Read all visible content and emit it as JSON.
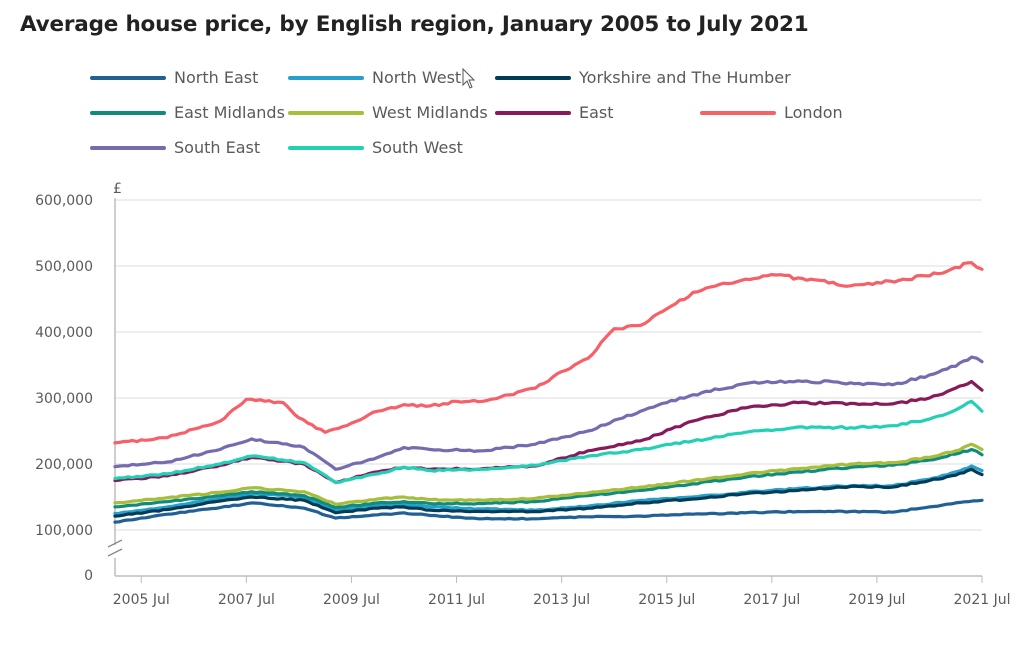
{
  "chart_data": {
    "type": "line",
    "title": "Average house price, by English region, January 2005 to July 2021",
    "ylabel": "£",
    "xlabel": "",
    "ylim": [
      0,
      600000
    ],
    "y_ticks": [
      0,
      100000,
      200000,
      300000,
      400000,
      500000,
      600000
    ],
    "y_tick_labels": [
      "0",
      "100,000",
      "200,000",
      "300,000",
      "400,000",
      "500,000",
      "600,000"
    ],
    "x_ticks": [
      2005.5,
      2007.5,
      2009.5,
      2011.5,
      2013.5,
      2015.5,
      2017.5,
      2019.5,
      2021.5
    ],
    "x_tick_labels": [
      "2005 Jul",
      "2007 Jul",
      "2009 Jul",
      "2011 Jul",
      "2013 Jul",
      "2015 Jul",
      "2017 Jul",
      "2019 Jul",
      "2021 Jul"
    ],
    "x_range": [
      2005.0,
      2021.5
    ],
    "axis_break": true,
    "grid": true,
    "legend_position": "top",
    "series": [
      {
        "name": "North East",
        "color": "#206095",
        "x": [
          2005.0,
          2006.0,
          2007.0,
          2007.6,
          2008.6,
          2009.2,
          2010.0,
          2010.5,
          2011.0,
          2012.0,
          2013.0,
          2014.0,
          2015.0,
          2016.0,
          2017.0,
          2018.0,
          2019.0,
          2019.8,
          2020.5,
          2021.0,
          2021.5
        ],
        "values": [
          112000,
          124000,
          134000,
          141000,
          133000,
          118000,
          123000,
          126000,
          122000,
          117000,
          117000,
          120000,
          121000,
          124000,
          126000,
          128000,
          128000,
          127000,
          135000,
          141000,
          145000
        ]
      },
      {
        "name": "North West",
        "color": "#27a0cc",
        "x": [
          2005.0,
          2006.0,
          2007.0,
          2007.6,
          2008.6,
          2009.2,
          2010.0,
          2010.5,
          2011.0,
          2012.0,
          2013.0,
          2014.0,
          2015.0,
          2016.0,
          2017.0,
          2018.0,
          2019.0,
          2019.8,
          2020.5,
          2021.0,
          2021.3,
          2021.5
        ],
        "values": [
          125000,
          135000,
          148000,
          155000,
          150000,
          130000,
          137000,
          139000,
          135000,
          132000,
          130000,
          136000,
          145000,
          150000,
          157000,
          163000,
          167000,
          167000,
          177000,
          188000,
          197000,
          190000
        ]
      },
      {
        "name": "Yorkshire and The Humber",
        "color": "#003c57",
        "x": [
          2005.0,
          2006.0,
          2007.0,
          2007.6,
          2008.6,
          2009.2,
          2010.0,
          2010.5,
          2011.0,
          2012.0,
          2013.0,
          2014.0,
          2015.0,
          2016.0,
          2017.0,
          2018.0,
          2019.0,
          2019.8,
          2020.5,
          2021.0,
          2021.3,
          2021.5
        ],
        "values": [
          121000,
          131000,
          144000,
          150000,
          145000,
          126000,
          133000,
          135000,
          130000,
          128000,
          128000,
          133000,
          141000,
          147000,
          155000,
          160000,
          166000,
          165000,
          175000,
          183000,
          192000,
          184000
        ]
      },
      {
        "name": "East Midlands",
        "color": "#118c7b",
        "x": [
          2005.0,
          2006.0,
          2007.0,
          2007.6,
          2008.6,
          2009.2,
          2010.0,
          2010.5,
          2011.0,
          2012.0,
          2013.0,
          2014.0,
          2015.0,
          2016.0,
          2017.0,
          2018.0,
          2019.0,
          2019.8,
          2020.5,
          2021.0,
          2021.3,
          2021.5
        ],
        "values": [
          135000,
          143000,
          152000,
          158000,
          152000,
          134000,
          141000,
          143000,
          140000,
          140000,
          143000,
          152000,
          160000,
          170000,
          180000,
          188000,
          195000,
          198000,
          206000,
          215000,
          222000,
          214000
        ]
      },
      {
        "name": "West Midlands",
        "color": "#a8bd3a",
        "x": [
          2005.0,
          2006.0,
          2007.0,
          2007.6,
          2008.6,
          2009.2,
          2010.0,
          2010.5,
          2011.0,
          2012.0,
          2013.0,
          2014.0,
          2015.0,
          2016.0,
          2017.0,
          2018.0,
          2019.0,
          2019.8,
          2020.5,
          2021.0,
          2021.3,
          2021.5
        ],
        "values": [
          141000,
          149000,
          157000,
          164000,
          158000,
          139000,
          147000,
          150000,
          146000,
          145000,
          148000,
          156000,
          165000,
          175000,
          185000,
          193000,
          200000,
          202000,
          210000,
          220000,
          230000,
          222000
        ]
      },
      {
        "name": "East",
        "color": "#871a5b",
        "x": [
          2005.0,
          2006.0,
          2007.0,
          2007.6,
          2008.6,
          2009.2,
          2010.0,
          2010.5,
          2011.0,
          2012.0,
          2013.0,
          2014.0,
          2015.0,
          2016.0,
          2017.0,
          2018.0,
          2019.0,
          2019.8,
          2020.5,
          2021.0,
          2021.3,
          2021.5
        ],
        "values": [
          175000,
          182000,
          198000,
          210000,
          200000,
          172000,
          188000,
          195000,
          192000,
          193000,
          197000,
          220000,
          235000,
          265000,
          285000,
          293000,
          292000,
          291000,
          300000,
          315000,
          325000,
          312000
        ]
      },
      {
        "name": "London",
        "color": "#f66068",
        "x": [
          2005.0,
          2006.0,
          2007.0,
          2007.5,
          2008.2,
          2008.5,
          2009.0,
          2009.5,
          2010.0,
          2010.5,
          2011.0,
          2011.5,
          2012.0,
          2013.0,
          2013.5,
          2014.0,
          2014.5,
          2015.0,
          2015.5,
          2016.0,
          2016.5,
          2017.0,
          2017.5,
          2018.0,
          2018.5,
          2019.0,
          2019.5,
          2020.0,
          2020.5,
          2021.0,
          2021.3,
          2021.5
        ],
        "values": [
          232000,
          240000,
          265000,
          298000,
          293000,
          270000,
          248000,
          262000,
          280000,
          290000,
          288000,
          295000,
          295000,
          315000,
          340000,
          360000,
          405000,
          410000,
          435000,
          460000,
          472000,
          480000,
          487000,
          482000,
          478000,
          470000,
          475000,
          480000,
          485000,
          498000,
          505000,
          495000
        ]
      },
      {
        "name": "South East",
        "color": "#746cb1",
        "x": [
          2005.0,
          2006.0,
          2007.0,
          2007.6,
          2008.6,
          2009.2,
          2010.0,
          2010.5,
          2011.0,
          2012.0,
          2013.0,
          2014.0,
          2015.0,
          2016.0,
          2017.0,
          2018.0,
          2019.0,
          2019.8,
          2020.5,
          2021.0,
          2021.3,
          2021.5
        ],
        "values": [
          196000,
          203000,
          222000,
          238000,
          225000,
          192000,
          210000,
          225000,
          222000,
          220000,
          230000,
          250000,
          280000,
          305000,
          322000,
          326000,
          323000,
          320000,
          335000,
          348000,
          362000,
          355000
        ]
      },
      {
        "name": "South West",
        "color": "#22d0b6",
        "x": [
          2005.0,
          2006.0,
          2007.0,
          2007.6,
          2008.6,
          2009.2,
          2010.0,
          2010.5,
          2011.0,
          2012.0,
          2013.0,
          2014.0,
          2015.0,
          2016.0,
          2017.0,
          2018.0,
          2019.0,
          2019.8,
          2020.5,
          2021.0,
          2021.3,
          2021.5
        ],
        "values": [
          178000,
          185000,
          200000,
          212000,
          202000,
          172000,
          185000,
          195000,
          190000,
          192000,
          198000,
          212000,
          222000,
          235000,
          248000,
          256000,
          255000,
          258000,
          268000,
          282000,
          295000,
          280000
        ]
      }
    ]
  }
}
